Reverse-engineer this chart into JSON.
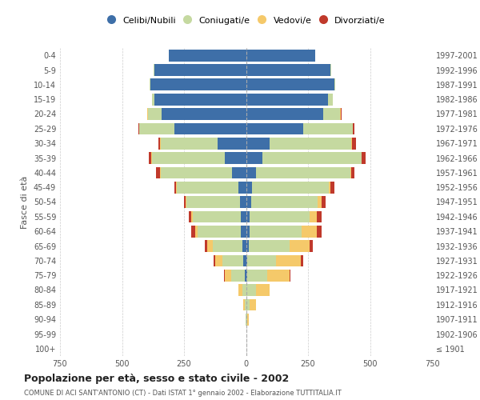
{
  "age_groups": [
    "100+",
    "95-99",
    "90-94",
    "85-89",
    "80-84",
    "75-79",
    "70-74",
    "65-69",
    "60-64",
    "55-59",
    "50-54",
    "45-49",
    "40-44",
    "35-39",
    "30-34",
    "25-29",
    "20-24",
    "15-19",
    "10-14",
    "5-9",
    "0-4"
  ],
  "birth_years": [
    "≤ 1901",
    "1902-1906",
    "1907-1911",
    "1912-1916",
    "1917-1921",
    "1922-1926",
    "1927-1931",
    "1932-1936",
    "1937-1941",
    "1942-1946",
    "1947-1951",
    "1952-1956",
    "1957-1961",
    "1962-1966",
    "1967-1971",
    "1972-1976",
    "1977-1981",
    "1982-1986",
    "1987-1991",
    "1992-1996",
    "1997-2001"
  ],
  "male": {
    "celibi": [
      0,
      0,
      0,
      0,
      0,
      5,
      10,
      15,
      20,
      20,
      25,
      30,
      55,
      85,
      115,
      290,
      340,
      370,
      385,
      370,
      310
    ],
    "coniugati": [
      0,
      0,
      2,
      5,
      15,
      55,
      85,
      120,
      175,
      195,
      215,
      250,
      290,
      295,
      230,
      140,
      55,
      10,
      5,
      2,
      0
    ],
    "vedovi": [
      0,
      0,
      1,
      5,
      15,
      25,
      30,
      20,
      10,
      5,
      3,
      2,
      2,
      2,
      2,
      2,
      2,
      0,
      0,
      0,
      0
    ],
    "divorziati": [
      0,
      0,
      0,
      0,
      0,
      5,
      5,
      10,
      15,
      10,
      8,
      8,
      15,
      10,
      5,
      3,
      2,
      0,
      0,
      0,
      0
    ]
  },
  "female": {
    "nubili": [
      0,
      0,
      0,
      0,
      0,
      5,
      5,
      10,
      15,
      15,
      20,
      25,
      40,
      65,
      95,
      230,
      310,
      330,
      355,
      340,
      280
    ],
    "coniugate": [
      0,
      2,
      5,
      15,
      40,
      80,
      115,
      165,
      210,
      240,
      270,
      310,
      380,
      400,
      330,
      200,
      70,
      20,
      5,
      2,
      0
    ],
    "vedove": [
      0,
      1,
      5,
      25,
      55,
      90,
      100,
      80,
      60,
      30,
      15,
      5,
      3,
      2,
      2,
      2,
      2,
      0,
      0,
      0,
      0
    ],
    "divorziate": [
      0,
      0,
      0,
      0,
      0,
      5,
      10,
      15,
      20,
      20,
      15,
      15,
      15,
      15,
      15,
      5,
      2,
      0,
      0,
      0,
      0
    ]
  },
  "colors": {
    "celibi": "#3e6fa8",
    "coniugati": "#c5d9a0",
    "vedovi": "#f5c96a",
    "divorziati": "#c0392b"
  },
  "xlim": 750,
  "title": "Popolazione per età, sesso e stato civile - 2002",
  "subtitle": "COMUNE DI ACI SANT'ANTONIO (CT) - Dati ISTAT 1° gennaio 2002 - Elaborazione TUTTITALIA.IT",
  "ylabel_left": "Fasce di età",
  "legend_labels": [
    "Celibi/Nubili",
    "Coniugati/e",
    "Vedovi/e",
    "Divorziati/e"
  ],
  "bg_color": "#ffffff",
  "grid_color": "#cccccc"
}
